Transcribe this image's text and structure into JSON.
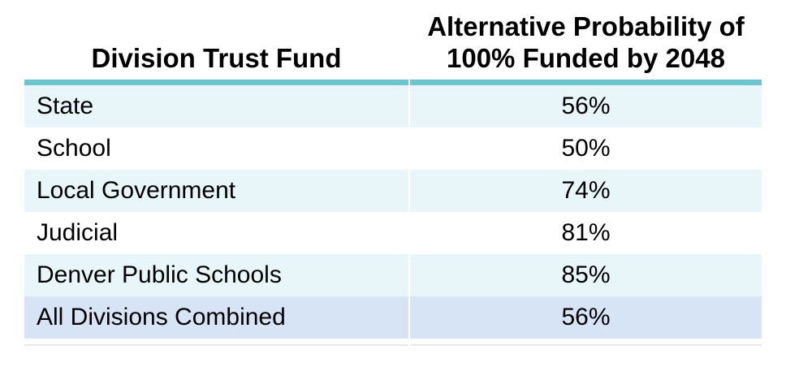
{
  "colors": {
    "teal_border": "#6cc5ce",
    "row_tint": "#e8f5f9",
    "total_row": "#d7e4f6",
    "frame_line": "#e9e9e9",
    "text": "#000000"
  },
  "table": {
    "columns": [
      {
        "label": "Division Trust Fund"
      },
      {
        "label_line1": "Alternative Probability of",
        "label_line2": "100% Funded by 2048"
      }
    ],
    "rows": [
      {
        "division": "State",
        "probability": "56%"
      },
      {
        "division": "School",
        "probability": "50%"
      },
      {
        "division": "Local Government",
        "probability": "74%"
      },
      {
        "division": "Judicial",
        "probability": "81%"
      },
      {
        "division": "Denver Public Schools",
        "probability": "85%"
      },
      {
        "division": "All Divisions Combined",
        "probability": "56%"
      }
    ]
  },
  "chart_data": {
    "type": "table",
    "title": "",
    "columns": [
      "Division Trust Fund",
      "Alternative Probability of 100% Funded by 2048"
    ],
    "categories": [
      "State",
      "School",
      "Local Government",
      "Judicial",
      "Denver Public Schools",
      "All Divisions Combined"
    ],
    "values": [
      56,
      50,
      74,
      81,
      85,
      56
    ],
    "value_unit": "%"
  }
}
